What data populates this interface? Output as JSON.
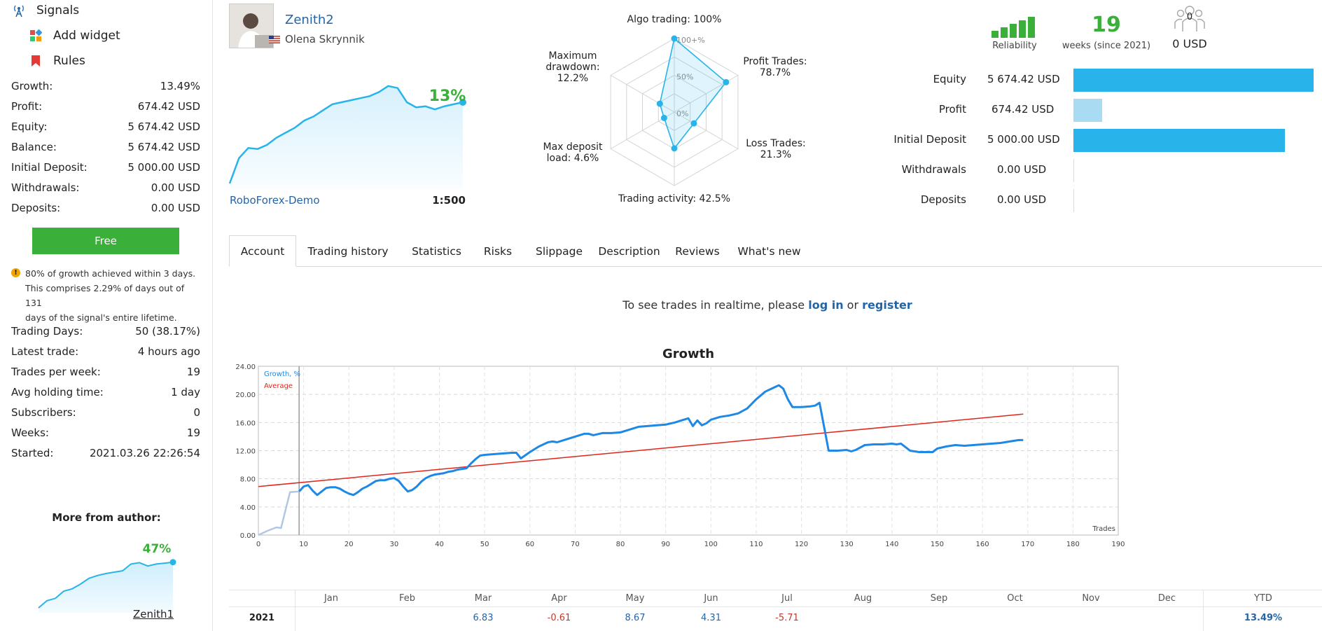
{
  "sidebar": {
    "nav": [
      {
        "label": "Signals",
        "icon": "antenna-icon"
      },
      {
        "label": "Add widget",
        "icon": "widget-icon"
      },
      {
        "label": "Rules",
        "icon": "bookmark-icon"
      }
    ],
    "stats": [
      {
        "label": "Growth:",
        "value": "13.49%"
      },
      {
        "label": "Profit:",
        "value": "674.42 USD"
      },
      {
        "label": "Equity:",
        "value": "5 674.42 USD"
      },
      {
        "label": "Balance:",
        "value": "5 674.42 USD"
      },
      {
        "label": "Initial Deposit:",
        "value": "5 000.00 USD"
      },
      {
        "label": "Withdrawals:",
        "value": "0.00 USD"
      },
      {
        "label": "Deposits:",
        "value": "0.00 USD"
      }
    ],
    "free_label": "Free",
    "note_lines": [
      "80% of growth achieved within 3 days.",
      "This comprises 2.29% of days out of 131",
      "days of the signal's entire lifetime."
    ],
    "stats2": [
      {
        "label": "Trading Days:",
        "value": "50 (38.17%)"
      },
      {
        "label": "Latest trade:",
        "value": "4 hours ago"
      },
      {
        "label": "Trades per week:",
        "value": "19"
      },
      {
        "label": "Avg holding time:",
        "value": "1 day"
      },
      {
        "label": "Subscribers:",
        "value": "0"
      },
      {
        "label": "Weeks:",
        "value": "19"
      },
      {
        "label": "Started:",
        "value": "2021.03.26 22:26:54"
      }
    ],
    "more_title": "More from author:",
    "more_signal": {
      "growth": "47%",
      "name": "Zenith1",
      "points": [
        0,
        0.15,
        0.2,
        0.35,
        0.4,
        0.5,
        0.62,
        0.68,
        0.72,
        0.75,
        0.78,
        0.92,
        0.95,
        0.88,
        0.92,
        0.94,
        0.96
      ]
    }
  },
  "header": {
    "signal_name": "Zenith2",
    "author": "Olena Skrynnik",
    "broker": "RoboForex-Demo",
    "leverage": "1:500",
    "growth": "13%",
    "colors": {
      "accent": "#28b4ea",
      "green": "#3ab03a",
      "link": "#2465a8"
    },
    "mini_points": [
      0,
      0.25,
      0.35,
      0.34,
      0.38,
      0.45,
      0.5,
      0.55,
      0.62,
      0.66,
      0.72,
      0.78,
      0.8,
      0.82,
      0.84,
      0.86,
      0.9,
      0.96,
      0.94,
      0.8,
      0.75,
      0.76,
      0.73,
      0.76,
      0.78,
      0.8
    ]
  },
  "radar": {
    "scale_labels": [
      "100+%",
      "50%",
      "0%"
    ],
    "axes": [
      {
        "name": "Algo trading: 100%",
        "value": 1.0
      },
      {
        "name": "Profit Trades: 78.7%",
        "value": 0.787
      },
      {
        "name": "Loss Trades: 21.3%",
        "value": 0.213
      },
      {
        "name": "Trading activity: 42.5%",
        "value": 0.425
      },
      {
        "name": "Max deposit load: 4.6%",
        "value": 0.046
      },
      {
        "name": "Maximum drawdown: 12.2%",
        "value": 0.122
      }
    ],
    "label_lines": [
      [
        "Algo trading: 100%"
      ],
      [
        "Profit Trades:",
        "78.7%"
      ],
      [
        "Loss Trades:",
        "21.3%"
      ],
      [
        "Trading activity: 42.5%"
      ],
      [
        "Max deposit",
        "load: 4.6%"
      ],
      [
        "Maximum",
        "drawdown:",
        "12.2%"
      ]
    ]
  },
  "top_stats": {
    "reliability_label": "Reliability",
    "reliability_bars": 5,
    "weeks_value": "19",
    "weeks_label": "weeks (since 2021)",
    "subscribers_count": "0",
    "subscribers_value": "0 USD"
  },
  "balance_bars": [
    {
      "label": "Equity",
      "value": "5 674.42 USD",
      "amount": 5674.42,
      "color": "#28b4ea"
    },
    {
      "label": "Profit",
      "value": "674.42 USD",
      "amount": 674.42,
      "color": "#a9dbf3"
    },
    {
      "label": "Initial Deposit",
      "value": "5 000.00 USD",
      "amount": 5000.0,
      "color": "#28b4ea"
    },
    {
      "label": "Withdrawals",
      "value": "0.00 USD",
      "amount": 0,
      "color": "#28b4ea"
    },
    {
      "label": "Deposits",
      "value": "0.00 USD",
      "amount": 0,
      "color": "#28b4ea"
    }
  ],
  "tabs": [
    "Account",
    "Trading history",
    "Statistics",
    "Risks",
    "Slippage",
    "Description",
    "Reviews",
    "What's new"
  ],
  "realtime": {
    "prefix": "To see trades in realtime, please ",
    "login": "log in",
    "mid": " or ",
    "register": "register"
  },
  "chart_data": {
    "type": "line",
    "title": "Growth",
    "xlabel": "Trades",
    "ylabel": "",
    "xlim": [
      0,
      190
    ],
    "ylim": [
      0,
      24
    ],
    "x_ticks": [
      0,
      10,
      20,
      30,
      40,
      50,
      60,
      70,
      80,
      90,
      100,
      110,
      120,
      130,
      140,
      150,
      160,
      170,
      180,
      190
    ],
    "y_ticks": [
      "0.00",
      "4.00",
      "8.00",
      "12.00",
      "16.00",
      "20.00",
      "24.00"
    ],
    "legend": [
      {
        "name": "Growth, %",
        "color": "#1e88e5"
      },
      {
        "name": "Average",
        "color": "#e0261b"
      }
    ],
    "series": [
      {
        "name": "Growth, %",
        "color": "#1e88e5",
        "pre_start": {
          "x": [
            0,
            2,
            4,
            5,
            7,
            9
          ],
          "y": [
            0,
            0.6,
            1.1,
            1.0,
            6.1,
            6.2
          ]
        },
        "x": [
          9,
          10,
          11,
          12,
          13,
          14,
          15,
          16,
          17,
          18,
          19,
          20,
          21,
          22,
          23,
          24,
          25,
          26,
          27,
          28,
          29,
          30,
          31,
          32,
          33,
          34,
          35,
          36,
          37,
          38,
          39,
          40,
          41,
          42,
          43,
          44,
          45,
          46,
          47,
          48,
          49,
          50,
          52,
          54,
          56,
          57,
          58,
          60,
          62,
          64,
          65,
          66,
          68,
          70,
          72,
          73,
          74,
          76,
          78,
          80,
          82,
          84,
          86,
          88,
          90,
          92,
          94,
          95,
          96,
          97,
          98,
          99,
          100,
          102,
          104,
          106,
          108,
          110,
          112,
          114,
          115,
          116,
          117,
          118,
          120,
          122,
          123,
          124,
          126,
          128,
          130,
          131,
          132,
          134,
          136,
          138,
          140,
          141,
          142,
          144,
          146,
          148,
          149,
          150,
          152,
          154,
          156,
          158,
          160,
          162,
          164,
          166,
          168,
          169
        ],
        "y": [
          6.2,
          6.9,
          7.1,
          6.3,
          5.7,
          6.2,
          6.7,
          6.8,
          6.8,
          6.6,
          6.2,
          5.9,
          5.7,
          6.1,
          6.6,
          6.9,
          7.3,
          7.7,
          7.8,
          7.8,
          8.0,
          8.1,
          7.7,
          6.9,
          6.2,
          6.4,
          6.9,
          7.6,
          8.1,
          8.4,
          8.6,
          8.7,
          8.8,
          9.0,
          9.1,
          9.3,
          9.4,
          9.5,
          10.2,
          10.8,
          11.3,
          11.4,
          11.5,
          11.6,
          11.7,
          11.7,
          10.9,
          11.8,
          12.6,
          13.2,
          13.3,
          13.2,
          13.6,
          14.0,
          14.4,
          14.4,
          14.2,
          14.5,
          14.5,
          14.6,
          15.0,
          15.4,
          15.5,
          15.6,
          15.7,
          16.0,
          16.4,
          16.6,
          15.5,
          16.3,
          15.6,
          15.9,
          16.4,
          16.8,
          17.0,
          17.3,
          18.0,
          19.3,
          20.4,
          21.0,
          21.3,
          20.8,
          19.3,
          18.2,
          18.2,
          18.3,
          18.4,
          18.8,
          12.0,
          12.0,
          12.1,
          11.9,
          12.1,
          12.8,
          12.9,
          12.9,
          13.0,
          12.9,
          13.0,
          12.0,
          11.8,
          11.8,
          11.8,
          12.3,
          12.6,
          12.8,
          12.7,
          12.8,
          12.9,
          13.0,
          13.1,
          13.3,
          13.5,
          13.5
        ]
      },
      {
        "name": "Average",
        "color": "#e0261b",
        "x": [
          0,
          169
        ],
        "y": [
          6.9,
          17.2
        ]
      }
    ],
    "months": [
      "Jan",
      "Feb",
      "Mar",
      "Apr",
      "May",
      "Jun",
      "Jul",
      "Aug",
      "Sep",
      "Oct",
      "Nov",
      "Dec"
    ],
    "year": "2021",
    "month_returns": [
      {
        "month": "Mar",
        "value": "6.83",
        "sign": 1
      },
      {
        "month": "Apr",
        "value": "-0.61",
        "sign": -1
      },
      {
        "month": "May",
        "value": "8.67",
        "sign": 1
      },
      {
        "month": "Jun",
        "value": "4.31",
        "sign": 1
      },
      {
        "month": "Jul",
        "value": "-5.71",
        "sign": -1
      }
    ],
    "ytd_label": "YTD",
    "ytd_value": "13.49%"
  }
}
